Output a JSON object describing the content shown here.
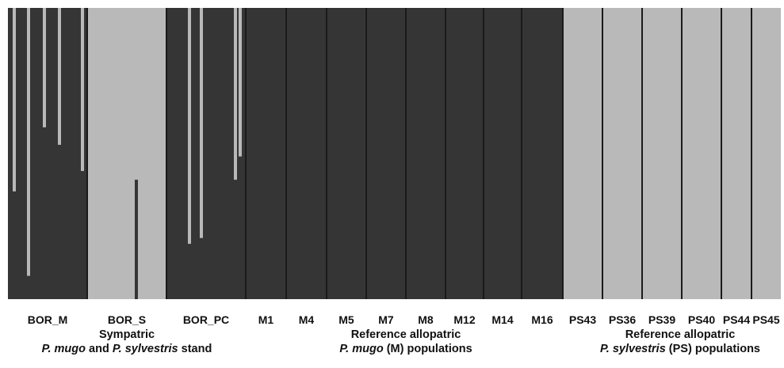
{
  "chart_data": {
    "type": "bar",
    "subtype": "stacked-structure-plot",
    "colors": {
      "cluster_dark": "#353535",
      "cluster_light": "#b9b9b9",
      "separator": "#1a1a1a"
    },
    "ylim": [
      0,
      1
    ],
    "populations": [
      {
        "name": "BOR_M",
        "dominant": "dark",
        "minor_bars": [
          {
            "pos": 0.08,
            "light_fraction": 0.63
          },
          {
            "pos": 0.26,
            "light_fraction": 0.92
          },
          {
            "pos": 0.46,
            "light_fraction": 0.41
          },
          {
            "pos": 0.65,
            "light_fraction": 0.47
          },
          {
            "pos": 0.94,
            "light_fraction": 0.56
          }
        ]
      },
      {
        "name": "BOR_S",
        "dominant": "light",
        "minor_bars": [
          {
            "pos": 0.62,
            "dark_fraction": 0.41
          }
        ]
      },
      {
        "name": "BOR_PC",
        "dominant": "dark",
        "minor_bars": [
          {
            "pos": 0.29,
            "light_fraction": 0.81
          },
          {
            "pos": 0.44,
            "light_fraction": 0.79
          },
          {
            "pos": 0.87,
            "light_fraction": 0.59
          },
          {
            "pos": 0.93,
            "light_fraction": 0.51
          }
        ]
      },
      {
        "name": "M1",
        "dominant": "dark",
        "minor_bars": []
      },
      {
        "name": "M4",
        "dominant": "dark",
        "minor_bars": []
      },
      {
        "name": "M5",
        "dominant": "dark",
        "minor_bars": []
      },
      {
        "name": "M7",
        "dominant": "dark",
        "minor_bars": []
      },
      {
        "name": "M8",
        "dominant": "dark",
        "minor_bars": []
      },
      {
        "name": "M12",
        "dominant": "dark",
        "minor_bars": []
      },
      {
        "name": "M14",
        "dominant": "dark",
        "minor_bars": []
      },
      {
        "name": "M16",
        "dominant": "dark",
        "minor_bars": []
      },
      {
        "name": "PS43",
        "dominant": "light",
        "minor_bars": []
      },
      {
        "name": "PS36",
        "dominant": "light",
        "minor_bars": []
      },
      {
        "name": "PS39",
        "dominant": "light",
        "minor_bars": []
      },
      {
        "name": "PS40",
        "dominant": "light",
        "minor_bars": []
      },
      {
        "name": "PS44",
        "dominant": "light",
        "minor_bars": []
      },
      {
        "name": "PS45",
        "dominant": "light",
        "minor_bars": []
      }
    ],
    "groups": [
      {
        "line1": "Sympatric",
        "line2_i1": "P. mugo",
        "line2_t1": " and ",
        "line2_i2": "P. sylvestris",
        "line2_t2": " stand"
      },
      {
        "line1": "Reference  allopatric",
        "line2_i1": "P. mugo",
        "line2_t1": " (M) populations",
        "line2_i2": "",
        "line2_t2": ""
      },
      {
        "line1": "Reference allopatric",
        "line2_i1": "P. sylvestris",
        "line2_t1": " (PS) populations",
        "line2_i2": "",
        "line2_t2": ""
      }
    ]
  }
}
